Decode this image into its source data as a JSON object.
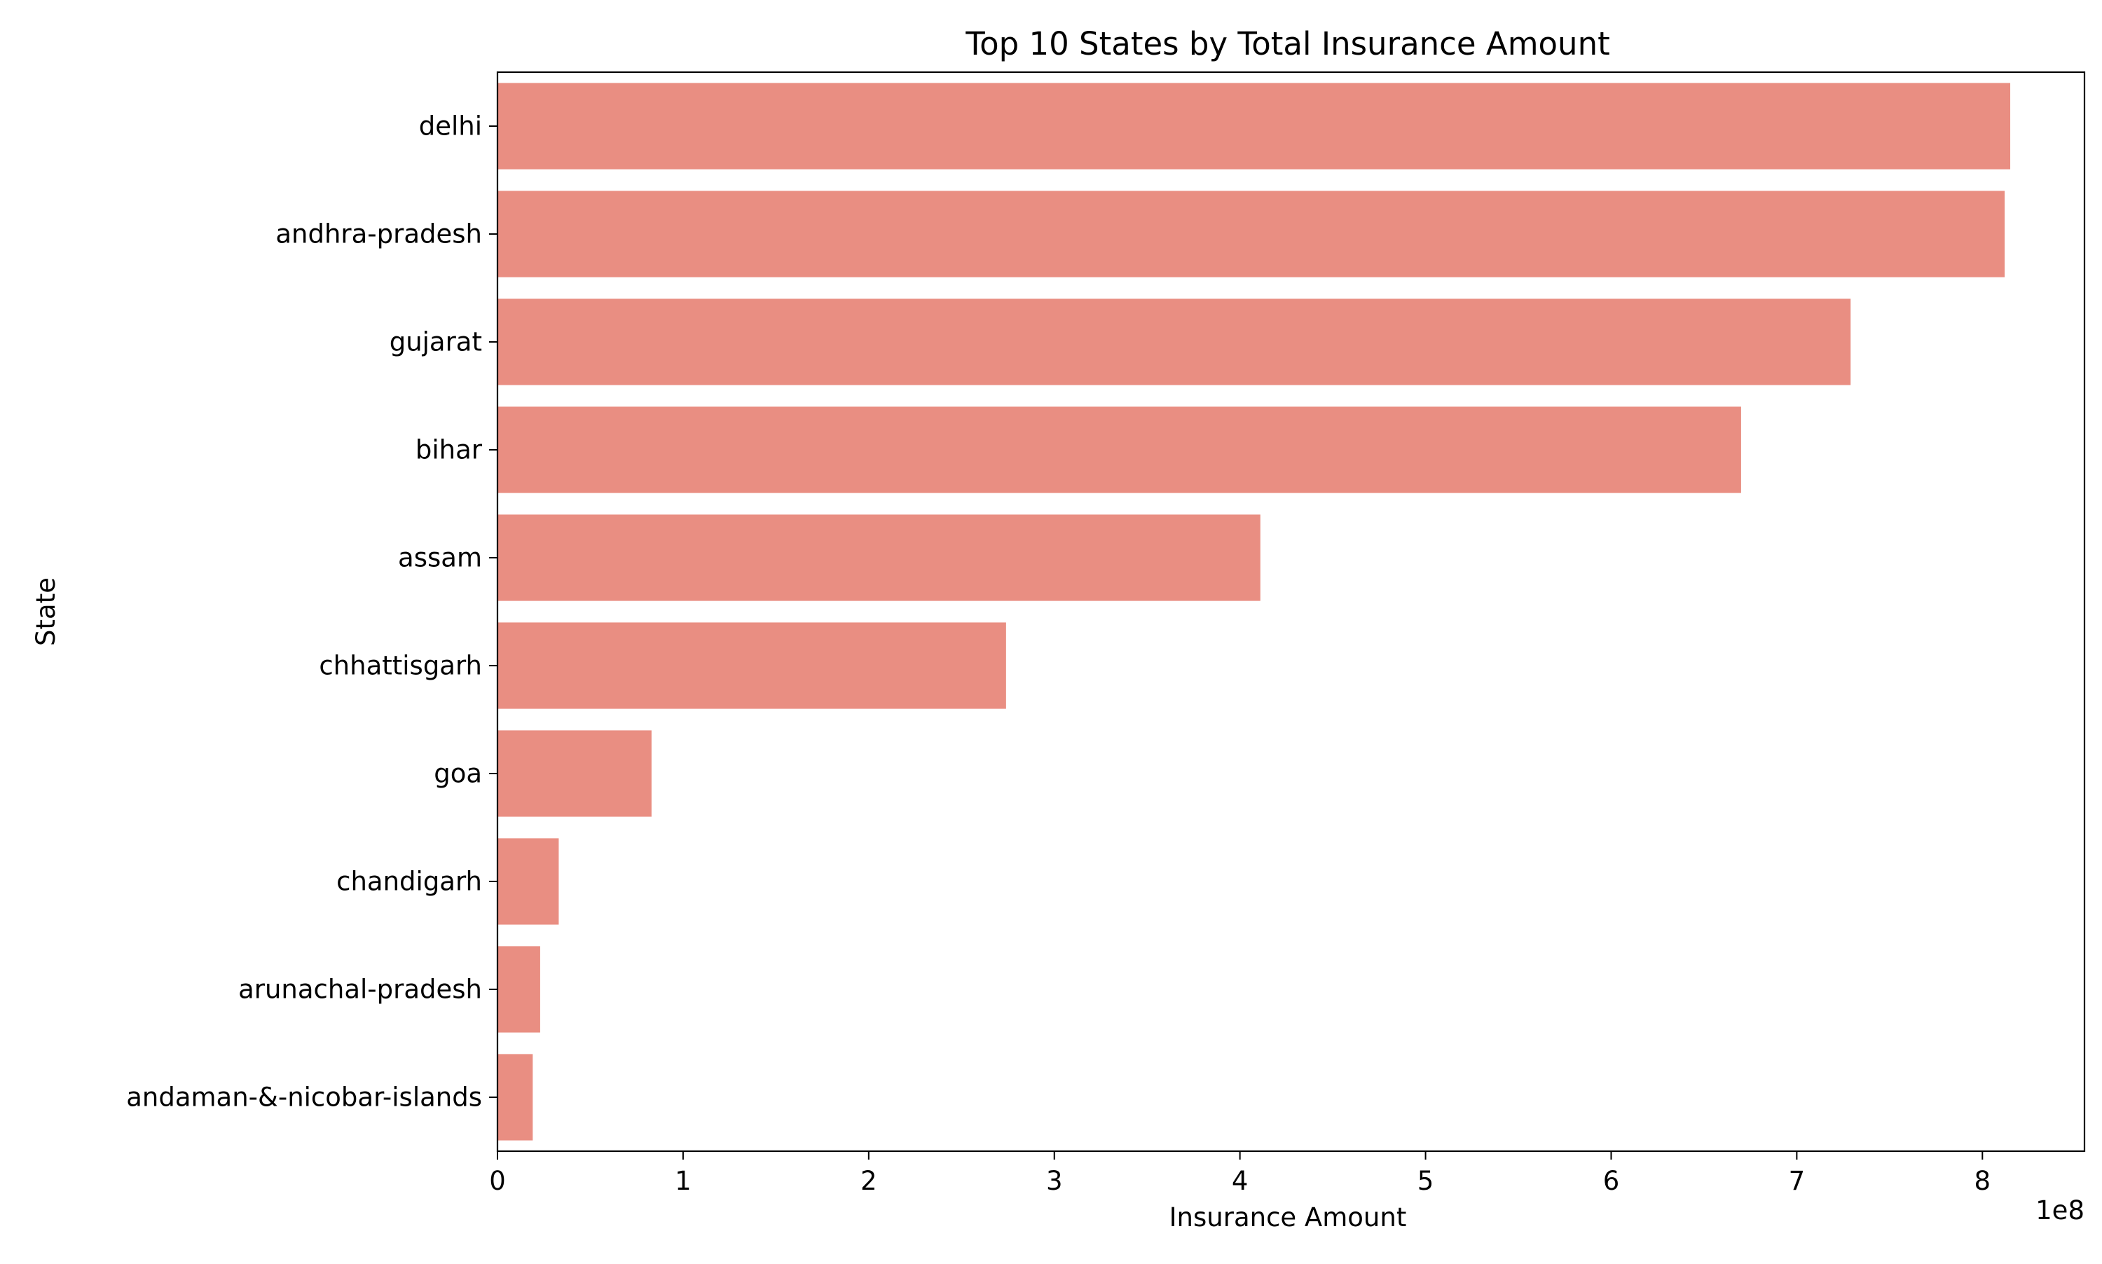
{
  "chart_data": {
    "type": "bar",
    "orientation": "horizontal",
    "title": "Top 10 States by Total Insurance Amount",
    "xlabel": "Insurance Amount",
    "ylabel": "State",
    "x_offset_label": "1e8",
    "xlim": [
      0,
      8.55
    ],
    "x_ticks": [
      "0",
      "1",
      "2",
      "3",
      "4",
      "5",
      "6",
      "7",
      "8"
    ],
    "categories": [
      "delhi",
      "andhra-pradesh",
      "gujarat",
      "bihar",
      "assam",
      "chhattisgarh",
      "goa",
      "chandigarh",
      "arunachal-pradesh",
      "andaman-&-nicobar-islands"
    ],
    "values": [
      8.15,
      8.12,
      7.29,
      6.7,
      4.11,
      2.74,
      0.83,
      0.33,
      0.23,
      0.19
    ],
    "bar_color": "#e98e82",
    "grid": false,
    "legend": "none"
  }
}
